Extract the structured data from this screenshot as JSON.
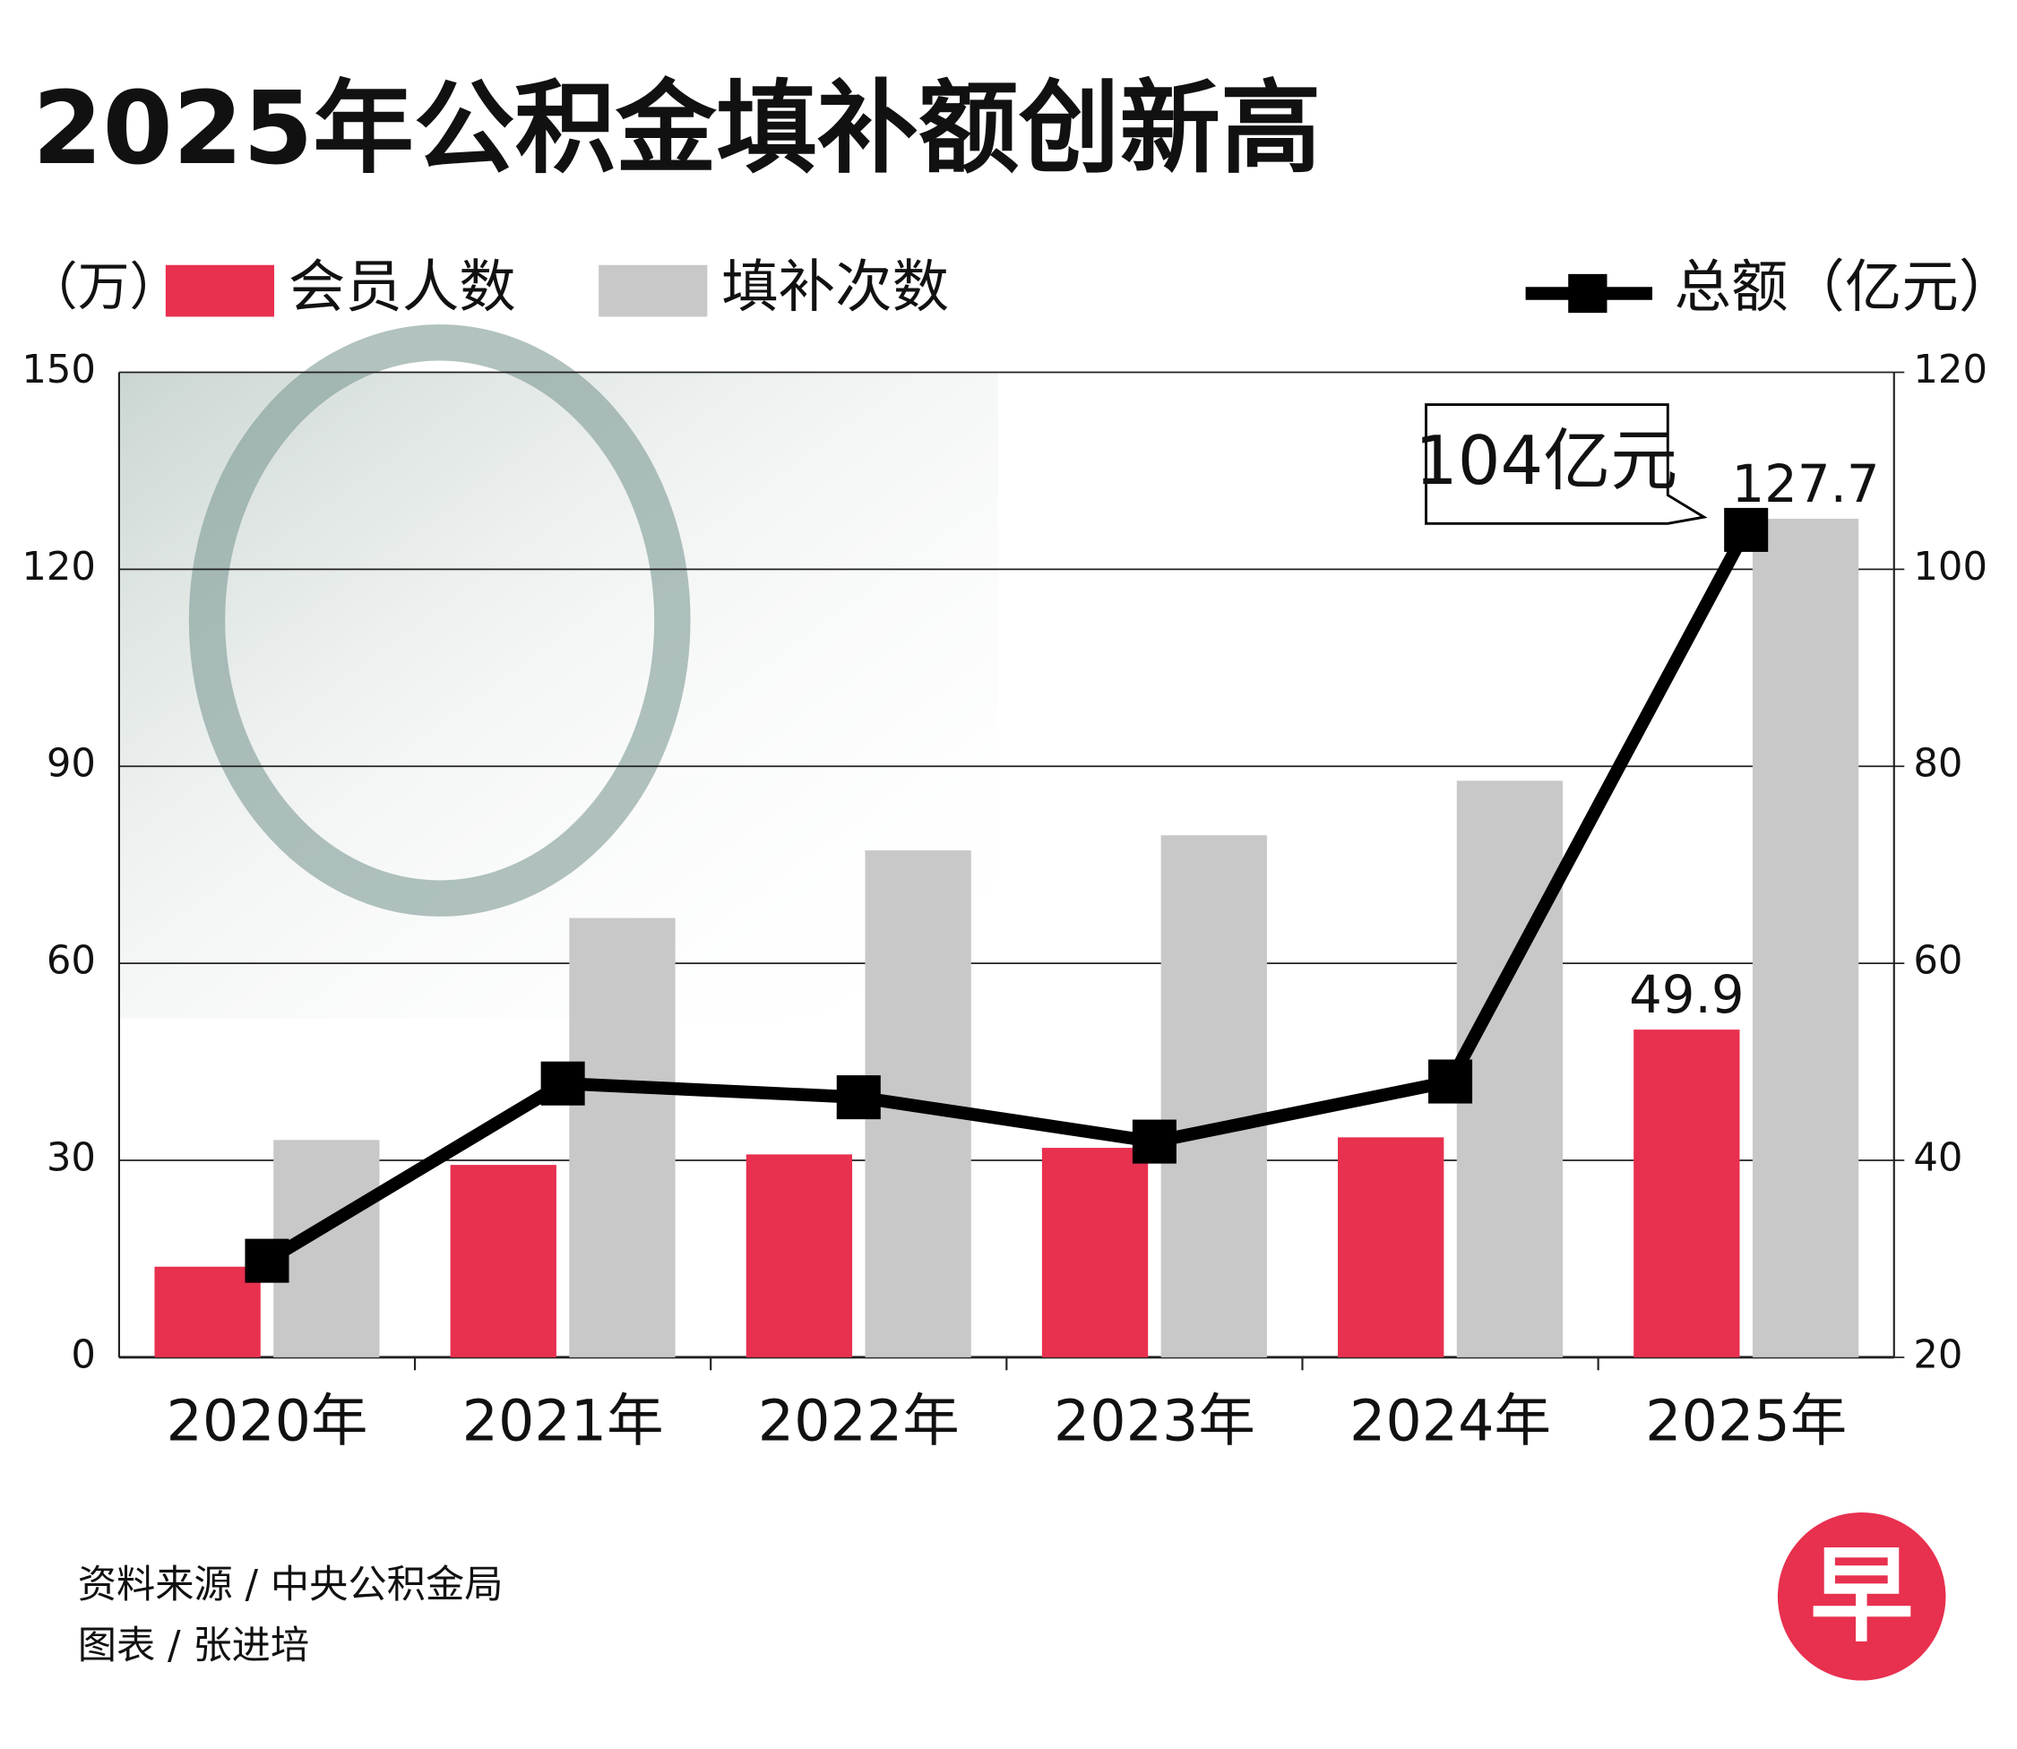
{
  "chart_data": {
    "type": "bar-line",
    "title": "2025年公积金填补额创新高",
    "y_label": "（万）",
    "categories": [
      "2020年",
      "2021年",
      "2022年",
      "2023年",
      "2024年",
      "2025年"
    ],
    "series": [
      {
        "name": "会员人数",
        "type": "bar",
        "color": "#e8304f",
        "values": [
          13.8,
          29.3,
          30.9,
          31.9,
          33.5,
          49.9
        ],
        "labeled": [
          false,
          false,
          false,
          false,
          false,
          true
        ]
      },
      {
        "name": "填补次数",
        "type": "bar",
        "color": "#c8c8c8",
        "values": [
          33.1,
          66.9,
          77.2,
          79.5,
          87.8,
          127.7
        ],
        "labeled": [
          false,
          false,
          false,
          false,
          false,
          true
        ]
      },
      {
        "name": "总额（亿元）",
        "type": "line",
        "axis": "y2",
        "color": "#000000",
        "values": [
          29.8,
          47.8,
          46.4,
          41.9,
          48.0,
          104
        ],
        "value_labels": [
          null,
          null,
          null,
          null,
          null,
          "104亿元"
        ]
      }
    ],
    "ylim": [
      0,
      150
    ],
    "yticks": [
      0,
      30,
      60,
      90,
      120,
      150
    ],
    "y2lim": [
      20,
      120
    ],
    "y2ticks": [
      20,
      40,
      60,
      80,
      100,
      120
    ],
    "grid": true,
    "source": "资料来源 / 中央公积金局",
    "credit": "图表 / 张进培",
    "logo": "早"
  }
}
